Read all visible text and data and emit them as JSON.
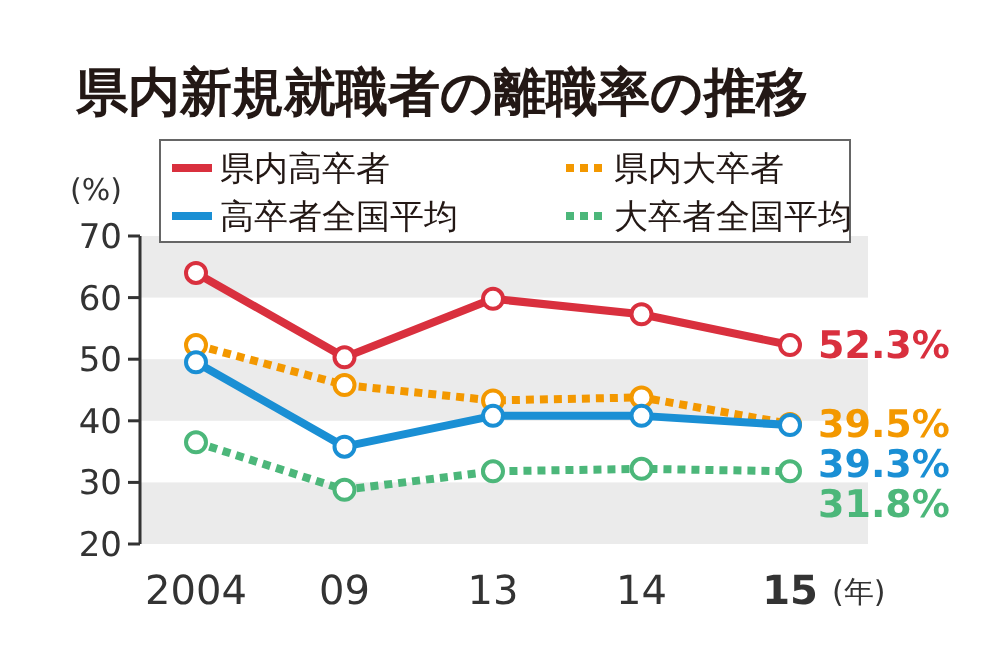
{
  "chart_data": {
    "type": "line",
    "title": "県内新規就職者の離職率の推移",
    "ylabel": "(%)",
    "xlabel": "(年)",
    "categories": [
      "2004",
      "09",
      "13",
      "14",
      "15"
    ],
    "ylim": [
      20,
      70
    ],
    "yticks": [
      20,
      30,
      40,
      50,
      60,
      70
    ],
    "bands": [
      {
        "axis": "y",
        "from": 20,
        "to": 30,
        "color": "#ebebeb"
      },
      {
        "axis": "y",
        "from": 40,
        "to": 50,
        "color": "#ebebeb"
      },
      {
        "axis": "y",
        "from": 60,
        "to": 70,
        "color": "#ebebeb"
      }
    ],
    "legend": "top",
    "marker": "circle",
    "series": [
      {
        "name": "県内高卒者",
        "color": "#d9303e",
        "line_style": "solid",
        "values": [
          64,
          50.3,
          59.8,
          57.3,
          52.3
        ],
        "value_labels": [
          null,
          null,
          null,
          null,
          "52.3%"
        ]
      },
      {
        "name": "県内大卒者",
        "color": "#f39800",
        "line_style": "dotted",
        "values": [
          52.3,
          45.8,
          43.3,
          43.8,
          39.5
        ],
        "value_labels": [
          null,
          null,
          null,
          null,
          "39.5%"
        ]
      },
      {
        "name": "高卒者全国平均",
        "color": "#1a8fd4",
        "line_style": "solid",
        "values": [
          49.5,
          35.8,
          40.8,
          40.8,
          39.3
        ],
        "value_labels": [
          null,
          null,
          null,
          null,
          "39.3%"
        ]
      },
      {
        "name": "大卒者全国平均",
        "color": "#4cb77a",
        "line_style": "dotted",
        "values": [
          36.5,
          28.8,
          31.8,
          32.2,
          31.8
        ],
        "value_labels": [
          null,
          null,
          null,
          null,
          "31.8%"
        ]
      }
    ]
  }
}
